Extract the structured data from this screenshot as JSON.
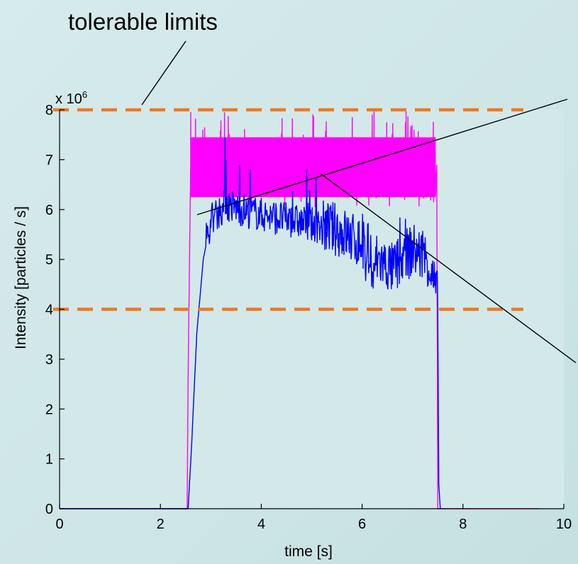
{
  "chart_data": {
    "type": "line",
    "xlabel": "time [s]",
    "ylabel": "Intensity [particles / s]",
    "xlim": [
      0,
      10
    ],
    "ylim": [
      0,
      8
    ],
    "y_multiplier_label": "x 10",
    "y_multiplier_exponent": "6",
    "x_ticks": [
      "0",
      "2",
      "4",
      "6",
      "8",
      "10"
    ],
    "y_ticks": [
      "0",
      "1",
      "2",
      "3",
      "4",
      "5",
      "6",
      "7",
      "8"
    ],
    "annotation": "tolerable limits",
    "tolerable_limits": [
      4,
      8
    ],
    "colors": {
      "blue_series": "#0000ff",
      "magenta_series": "#ff00ff",
      "limits": "#f07820"
    },
    "series": [
      {
        "color": "#0000ff",
        "x": [
          0,
          2.55,
          2.62,
          2.72,
          2.85,
          3.0,
          3.3,
          3.6,
          4.0,
          4.5,
          5.0,
          5.5,
          6.0,
          6.3,
          6.6,
          7.0,
          7.3,
          7.5,
          7.52,
          7.55
        ],
        "y": [
          0,
          0,
          1.3,
          3.5,
          5.0,
          5.8,
          6.1,
          6.0,
          5.9,
          5.8,
          5.7,
          5.6,
          5.3,
          5.0,
          4.8,
          5.2,
          5.0,
          4.2,
          0.5,
          0
        ]
      },
      {
        "color": "#ff00ff",
        "x": [
          0,
          2.53,
          2.55,
          2.6,
          7.45,
          7.48,
          7.5,
          9.5
        ],
        "y": [
          0,
          0,
          2.7,
          6.9,
          6.9,
          6.9,
          0,
          0
        ],
        "noise_band": [
          6.25,
          7.45
        ]
      }
    ]
  }
}
